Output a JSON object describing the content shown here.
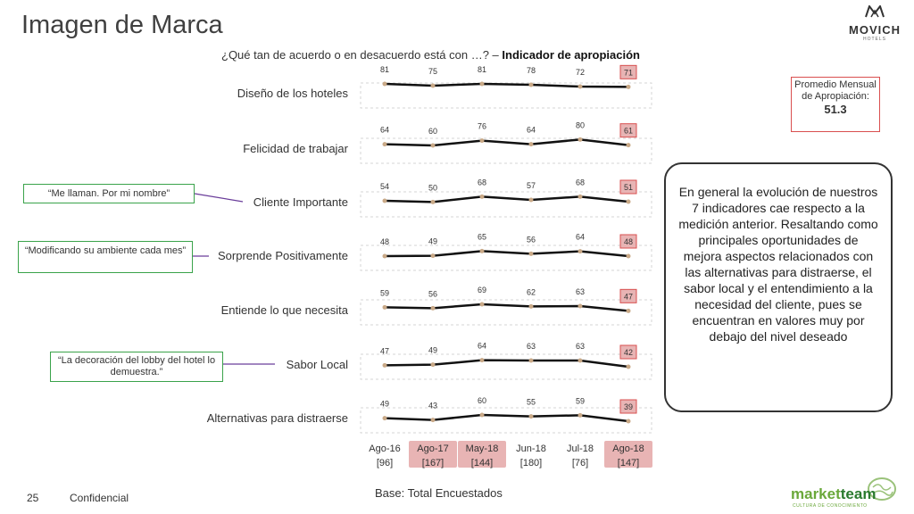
{
  "title": "Imagen de Marca",
  "subtitle_question": "¿Qué tan de acuerdo o en desacuerdo está con …? –",
  "subtitle_bold": "Indicador de apropiación",
  "brand_logo": {
    "name": "MOVICH",
    "sub": "HOTELS"
  },
  "promedio": {
    "label": "Promedio Mensual de Apropiación:",
    "value": "51.3"
  },
  "summary_text": "En general la evolución de nuestros 7 indicadores cae respecto a la medición anterior. Resaltando como principales oportunidades de mejora aspectos relacionados con las alternativas para distraerse, el sabor local y el entendimiento a la necesidad del cliente, pues se encuentran en valores muy por debajo del nivel deseado",
  "quotes": [
    {
      "text": "“Me llaman. Por mi nombre”"
    },
    {
      "text": "“Modificando su ambiente cada mes”"
    },
    {
      "text": "“La decoración del lobby del hotel lo demuestra.”"
    }
  ],
  "footer": {
    "page": "25",
    "confidential": "Confidencial",
    "base": "Base: Total Encuestados"
  },
  "marketteam_logo": {
    "part1": "market",
    "part2": "team",
    "sub": "CULTURA DE CONOCIMIENTO"
  },
  "colors": {
    "highlight": "#e8b4b4",
    "highlight_border": "#d94f4f",
    "line": "#111111",
    "point": "#c9a987",
    "quote_border": "#3aa34a",
    "connector": "#6a3d9a"
  },
  "chart_data": {
    "type": "line",
    "categories": [
      "Ago-16",
      "Ago-17",
      "May-18",
      "Jun-18",
      "Jul-18",
      "Ago-18"
    ],
    "bases": [
      "[96]",
      "[167]",
      "[144]",
      "[180]",
      "[76]",
      "[147]"
    ],
    "highlighted_categories": [
      "Ago-17",
      "May-18",
      "Ago-18"
    ],
    "series": [
      {
        "name": "Diseño de los hoteles",
        "values": [
          81,
          75,
          81,
          78,
          72,
          71
        ]
      },
      {
        "name": "Felicidad de trabajar",
        "values": [
          64,
          60,
          76,
          64,
          80,
          61
        ]
      },
      {
        "name": "Cliente Importante",
        "values": [
          54,
          50,
          68,
          57,
          68,
          51
        ]
      },
      {
        "name": "Sorprende Positivamente",
        "values": [
          48,
          49,
          65,
          56,
          64,
          48
        ]
      },
      {
        "name": "Entiende lo que necesita",
        "values": [
          59,
          56,
          69,
          62,
          63,
          47
        ]
      },
      {
        "name": "Sabor Local",
        "values": [
          47,
          49,
          64,
          63,
          63,
          42
        ]
      },
      {
        "name": "Alternativas para distraerse",
        "values": [
          49,
          43,
          60,
          55,
          59,
          39
        ]
      }
    ]
  }
}
